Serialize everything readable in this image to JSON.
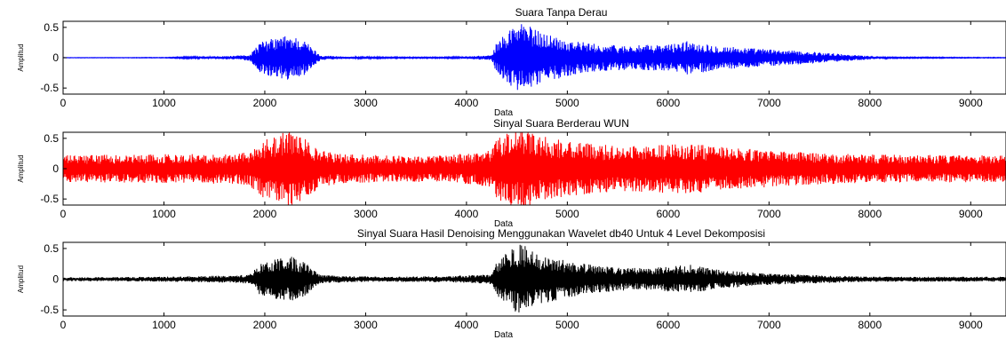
{
  "chart_data": [
    {
      "type": "line",
      "title": "Suara Tanpa Derau",
      "xlabel": "Data",
      "ylabel": "Amplitud",
      "xlim": [
        0,
        9350
      ],
      "ylim": [
        -0.6,
        0.6
      ],
      "xticks": [
        0,
        1000,
        2000,
        3000,
        4000,
        5000,
        6000,
        7000,
        8000,
        9000
      ],
      "yticks": [
        0.5,
        0,
        -0.5
      ],
      "color": "#0000ff",
      "series": [
        {
          "x": [
            0,
            1000,
            1700,
            1850,
            1950,
            2100,
            2250,
            2400,
            2550,
            2800,
            3200,
            3800,
            4250,
            4300,
            4450,
            4550,
            4700,
            5000,
            5300,
            5600,
            6000,
            6200,
            6500,
            6900,
            7200,
            7500,
            7800,
            8200,
            9350
          ],
          "envelope": [
            0.003,
            0.005,
            0.03,
            0.05,
            0.25,
            0.33,
            0.38,
            0.28,
            0.04,
            0.02,
            0.01,
            0.01,
            0.04,
            0.25,
            0.52,
            0.6,
            0.45,
            0.3,
            0.22,
            0.2,
            0.22,
            0.28,
            0.2,
            0.15,
            0.12,
            0.09,
            0.05,
            0.01,
            0.005
          ]
        }
      ]
    },
    {
      "type": "line",
      "title": "Sinyal Suara Berderau WUN",
      "xlabel": "Data",
      "ylabel": "Amplitud",
      "xlim": [
        0,
        9350
      ],
      "ylim": [
        -0.6,
        0.6
      ],
      "xticks": [
        0,
        1000,
        2000,
        3000,
        4000,
        5000,
        6000,
        7000,
        8000,
        9000
      ],
      "yticks": [
        0.5,
        0,
        -0.5
      ],
      "color": "#ff0000",
      "series": [
        {
          "x": [
            0,
            1000,
            1700,
            1850,
            1950,
            2100,
            2250,
            2400,
            2550,
            2800,
            3200,
            3800,
            4250,
            4300,
            4450,
            4550,
            4700,
            5000,
            5300,
            5600,
            6000,
            6200,
            6500,
            6900,
            7200,
            7500,
            7800,
            8200,
            9350
          ],
          "envelope": [
            0.22,
            0.24,
            0.25,
            0.28,
            0.45,
            0.55,
            0.62,
            0.5,
            0.3,
            0.24,
            0.22,
            0.22,
            0.3,
            0.5,
            0.62,
            0.65,
            0.55,
            0.45,
            0.4,
            0.38,
            0.4,
            0.42,
            0.36,
            0.32,
            0.28,
            0.26,
            0.24,
            0.23,
            0.22
          ]
        }
      ]
    },
    {
      "type": "line",
      "title": "Sinyal Suara Hasil Denoising Menggunakan Wavelet db40 Untuk 4 Level Dekomposisi",
      "xlabel": "Data",
      "ylabel": "Amplitud",
      "xlim": [
        0,
        9350
      ],
      "ylim": [
        -0.6,
        0.6
      ],
      "xticks": [
        0,
        1000,
        2000,
        3000,
        4000,
        5000,
        6000,
        7000,
        8000,
        9000
      ],
      "yticks": [
        0.5,
        0,
        -0.5
      ],
      "color": "#000000",
      "series": [
        {
          "x": [
            0,
            1000,
            1700,
            1850,
            1950,
            2100,
            2250,
            2400,
            2550,
            2800,
            3200,
            3800,
            4250,
            4300,
            4450,
            4550,
            4700,
            5000,
            5300,
            5600,
            6000,
            6200,
            6500,
            6900,
            7200,
            7500,
            7800,
            8200,
            9350
          ],
          "envelope": [
            0.03,
            0.04,
            0.06,
            0.08,
            0.25,
            0.33,
            0.38,
            0.27,
            0.07,
            0.05,
            0.04,
            0.05,
            0.08,
            0.3,
            0.5,
            0.58,
            0.42,
            0.3,
            0.22,
            0.18,
            0.2,
            0.24,
            0.16,
            0.1,
            0.08,
            0.07,
            0.05,
            0.04,
            0.04
          ]
        }
      ]
    }
  ]
}
